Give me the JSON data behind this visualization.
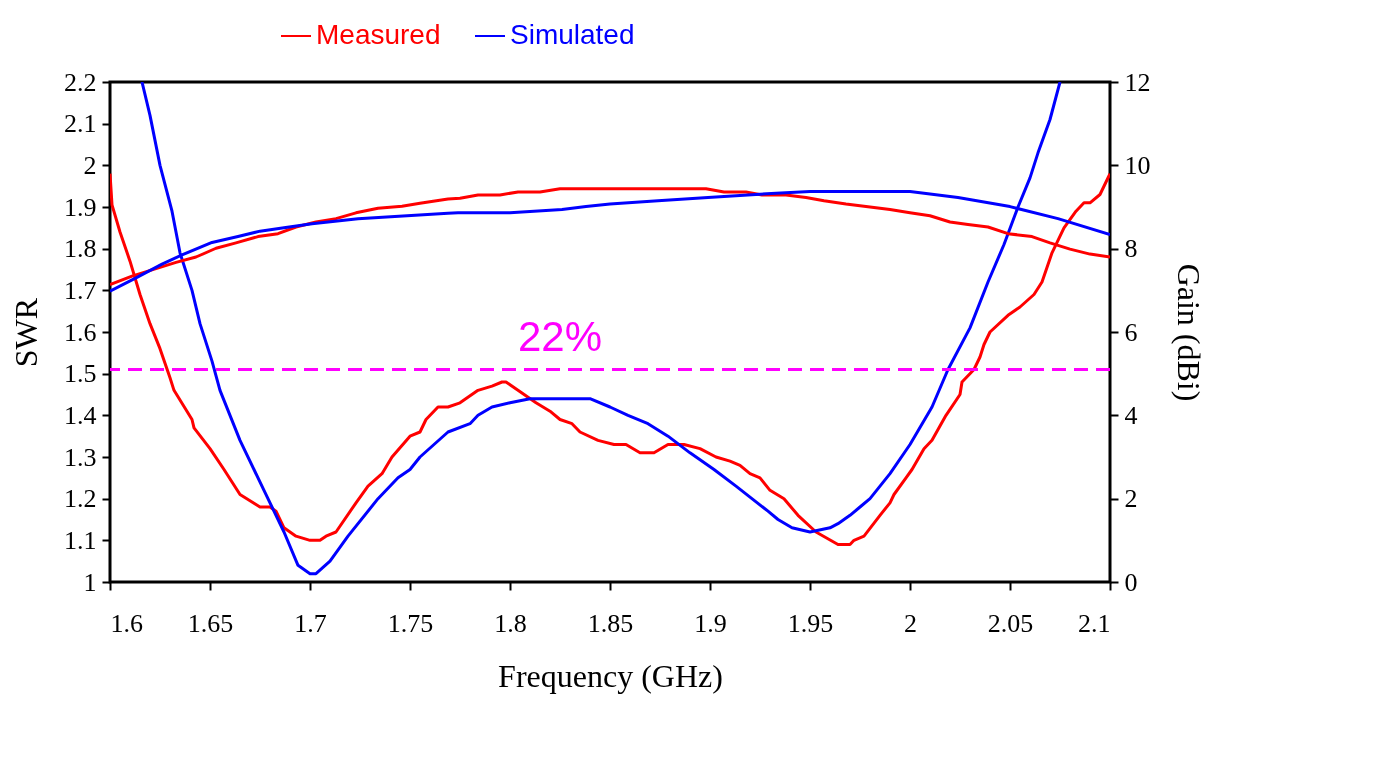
{
  "chart_data": {
    "type": "line",
    "xlabel": "Frequency (GHz)",
    "ylabel": "SWR",
    "y2label": "Gain (dBi)",
    "xlim": [
      1.6,
      2.1
    ],
    "xticks": [
      1.6,
      1.65,
      1.7,
      1.75,
      1.8,
      1.85,
      1.9,
      1.95,
      2,
      2.05,
      2.1
    ],
    "ylim": [
      1,
      2.2
    ],
    "yticks": [
      1,
      1.1,
      1.2,
      1.3,
      1.4,
      1.5,
      1.6,
      1.7,
      1.8,
      1.9,
      2,
      2.1,
      2.2
    ],
    "y2lim": [
      0,
      12
    ],
    "y2ticks": [
      0,
      2,
      4,
      6,
      8,
      10,
      12
    ],
    "grid": false,
    "legend": "top",
    "line_style": "solid",
    "marker": "none",
    "ref_lines": [
      {
        "axis": "y",
        "value": 1.51,
        "color": "#ff00ff",
        "line_style": "dashed"
      }
    ],
    "annotations": [
      "22%"
    ],
    "series": [
      {
        "name": "Measured",
        "color": "#ff0000",
        "axis": "y",
        "x": [
          1.6,
          1.601,
          1.605,
          1.61,
          1.615,
          1.62,
          1.625,
          1.63,
          1.632,
          1.641,
          1.642,
          1.65,
          1.657,
          1.665,
          1.675,
          1.68,
          1.683,
          1.687,
          1.693,
          1.7,
          1.705,
          1.708,
          1.713,
          1.723,
          1.729,
          1.736,
          1.741,
          1.75,
          1.755,
          1.758,
          1.764,
          1.769,
          1.775,
          1.784,
          1.791,
          1.796,
          1.798,
          1.804,
          1.813,
          1.82,
          1.825,
          1.831,
          1.835,
          1.844,
          1.852,
          1.858,
          1.865,
          1.872,
          1.879,
          1.887,
          1.895,
          1.903,
          1.91,
          1.915,
          1.92,
          1.925,
          1.93,
          1.937,
          1.944,
          1.953,
          1.964,
          1.97,
          1.972,
          1.977,
          1.985,
          1.99,
          1.992,
          1.998,
          2.001,
          2.007,
          2.011,
          2.018,
          2.025,
          2.026,
          2.032,
          2.035,
          2.037,
          2.04,
          2.049,
          2.055,
          2.062,
          2.066,
          2.071,
          2.077,
          2.083,
          2.087,
          2.09,
          2.095,
          2.1
        ],
        "values": [
          1.98,
          1.905,
          1.84,
          1.77,
          1.69,
          1.62,
          1.56,
          1.49,
          1.46,
          1.39,
          1.37,
          1.32,
          1.27,
          1.21,
          1.18,
          1.18,
          1.17,
          1.13,
          1.11,
          1.1,
          1.1,
          1.11,
          1.12,
          1.19,
          1.23,
          1.26,
          1.3,
          1.35,
          1.36,
          1.39,
          1.42,
          1.42,
          1.43,
          1.46,
          1.47,
          1.48,
          1.48,
          1.46,
          1.43,
          1.41,
          1.39,
          1.38,
          1.36,
          1.34,
          1.33,
          1.33,
          1.31,
          1.31,
          1.33,
          1.33,
          1.32,
          1.3,
          1.29,
          1.28,
          1.26,
          1.25,
          1.22,
          1.2,
          1.16,
          1.12,
          1.09,
          1.09,
          1.1,
          1.11,
          1.16,
          1.19,
          1.21,
          1.25,
          1.27,
          1.32,
          1.34,
          1.4,
          1.45,
          1.48,
          1.51,
          1.54,
          1.57,
          1.6,
          1.64,
          1.66,
          1.69,
          1.72,
          1.79,
          1.85,
          1.89,
          1.91,
          1.91,
          1.93,
          1.98
        ]
      },
      {
        "name": "Simulated",
        "color": "#0000ff",
        "axis": "y",
        "x": [
          1.616,
          1.62,
          1.625,
          1.631,
          1.635,
          1.641,
          1.645,
          1.651,
          1.655,
          1.665,
          1.677,
          1.687,
          1.694,
          1.697,
          1.7,
          1.703,
          1.71,
          1.719,
          1.734,
          1.744,
          1.75,
          1.755,
          1.769,
          1.78,
          1.784,
          1.791,
          1.8,
          1.81,
          1.83,
          1.84,
          1.85,
          1.859,
          1.869,
          1.879,
          1.89,
          1.902,
          1.913,
          1.929,
          1.934,
          1.941,
          1.95,
          1.96,
          1.964,
          1.97,
          1.975,
          1.98,
          1.99,
          2,
          2.011,
          2.019,
          2.03,
          2.039,
          2.047,
          2.054,
          2.06,
          2.064,
          2.07,
          2.075
        ],
        "values": [
          2.2,
          2.12,
          2.0,
          1.89,
          1.79,
          1.7,
          1.62,
          1.53,
          1.46,
          1.34,
          1.22,
          1.12,
          1.04,
          1.03,
          1.02,
          1.02,
          1.05,
          1.11,
          1.2,
          1.25,
          1.27,
          1.3,
          1.36,
          1.38,
          1.4,
          1.42,
          1.43,
          1.44,
          1.44,
          1.44,
          1.42,
          1.4,
          1.38,
          1.35,
          1.31,
          1.27,
          1.23,
          1.17,
          1.15,
          1.13,
          1.12,
          1.13,
          1.14,
          1.16,
          1.18,
          1.2,
          1.26,
          1.33,
          1.42,
          1.51,
          1.61,
          1.72,
          1.81,
          1.9,
          1.97,
          2.03,
          2.11,
          2.2
        ]
      },
      {
        "color": "#ff0000",
        "axis": "y2",
        "x": [
          1.6,
          1.611,
          1.623,
          1.633,
          1.643,
          1.653,
          1.663,
          1.674,
          1.684,
          1.693,
          1.703,
          1.713,
          1.723,
          1.734,
          1.746,
          1.755,
          1.769,
          1.775,
          1.784,
          1.795,
          1.804,
          1.815,
          1.825,
          1.898,
          1.907,
          1.918,
          1.926,
          1.938,
          1.948,
          1.957,
          1.968,
          1.978,
          1.99,
          2,
          2.01,
          2.02,
          2.029,
          2.039,
          2.049,
          2.061,
          2.07,
          2.08,
          2.09,
          2.1
        ],
        "values": [
          7.14,
          7.34,
          7.52,
          7.67,
          7.8,
          8.01,
          8.14,
          8.29,
          8.36,
          8.52,
          8.64,
          8.72,
          8.86,
          8.97,
          9.02,
          9.09,
          9.19,
          9.21,
          9.29,
          9.29,
          9.36,
          9.36,
          9.44,
          9.44,
          9.36,
          9.36,
          9.29,
          9.29,
          9.23,
          9.15,
          9.07,
          9.01,
          8.94,
          8.86,
          8.79,
          8.64,
          8.58,
          8.52,
          8.36,
          8.29,
          8.14,
          7.99,
          7.87,
          7.8
        ]
      },
      {
        "color": "#0000ff",
        "axis": "y2",
        "x": [
          1.6,
          1.613,
          1.626,
          1.636,
          1.651,
          1.664,
          1.675,
          1.687,
          1.701,
          1.724,
          1.769,
          1.774,
          1.8,
          1.826,
          1.838,
          1.85,
          1.874,
          1.899,
          1.933,
          1.95,
          2,
          2.024,
          2.05,
          2.074,
          2.1
        ],
        "values": [
          6.98,
          7.3,
          7.63,
          7.85,
          8.15,
          8.29,
          8.42,
          8.5,
          8.6,
          8.72,
          8.85,
          8.86,
          8.86,
          8.94,
          9.01,
          9.07,
          9.15,
          9.23,
          9.33,
          9.37,
          9.37,
          9.23,
          9.01,
          8.72,
          8.34
        ]
      }
    ]
  }
}
